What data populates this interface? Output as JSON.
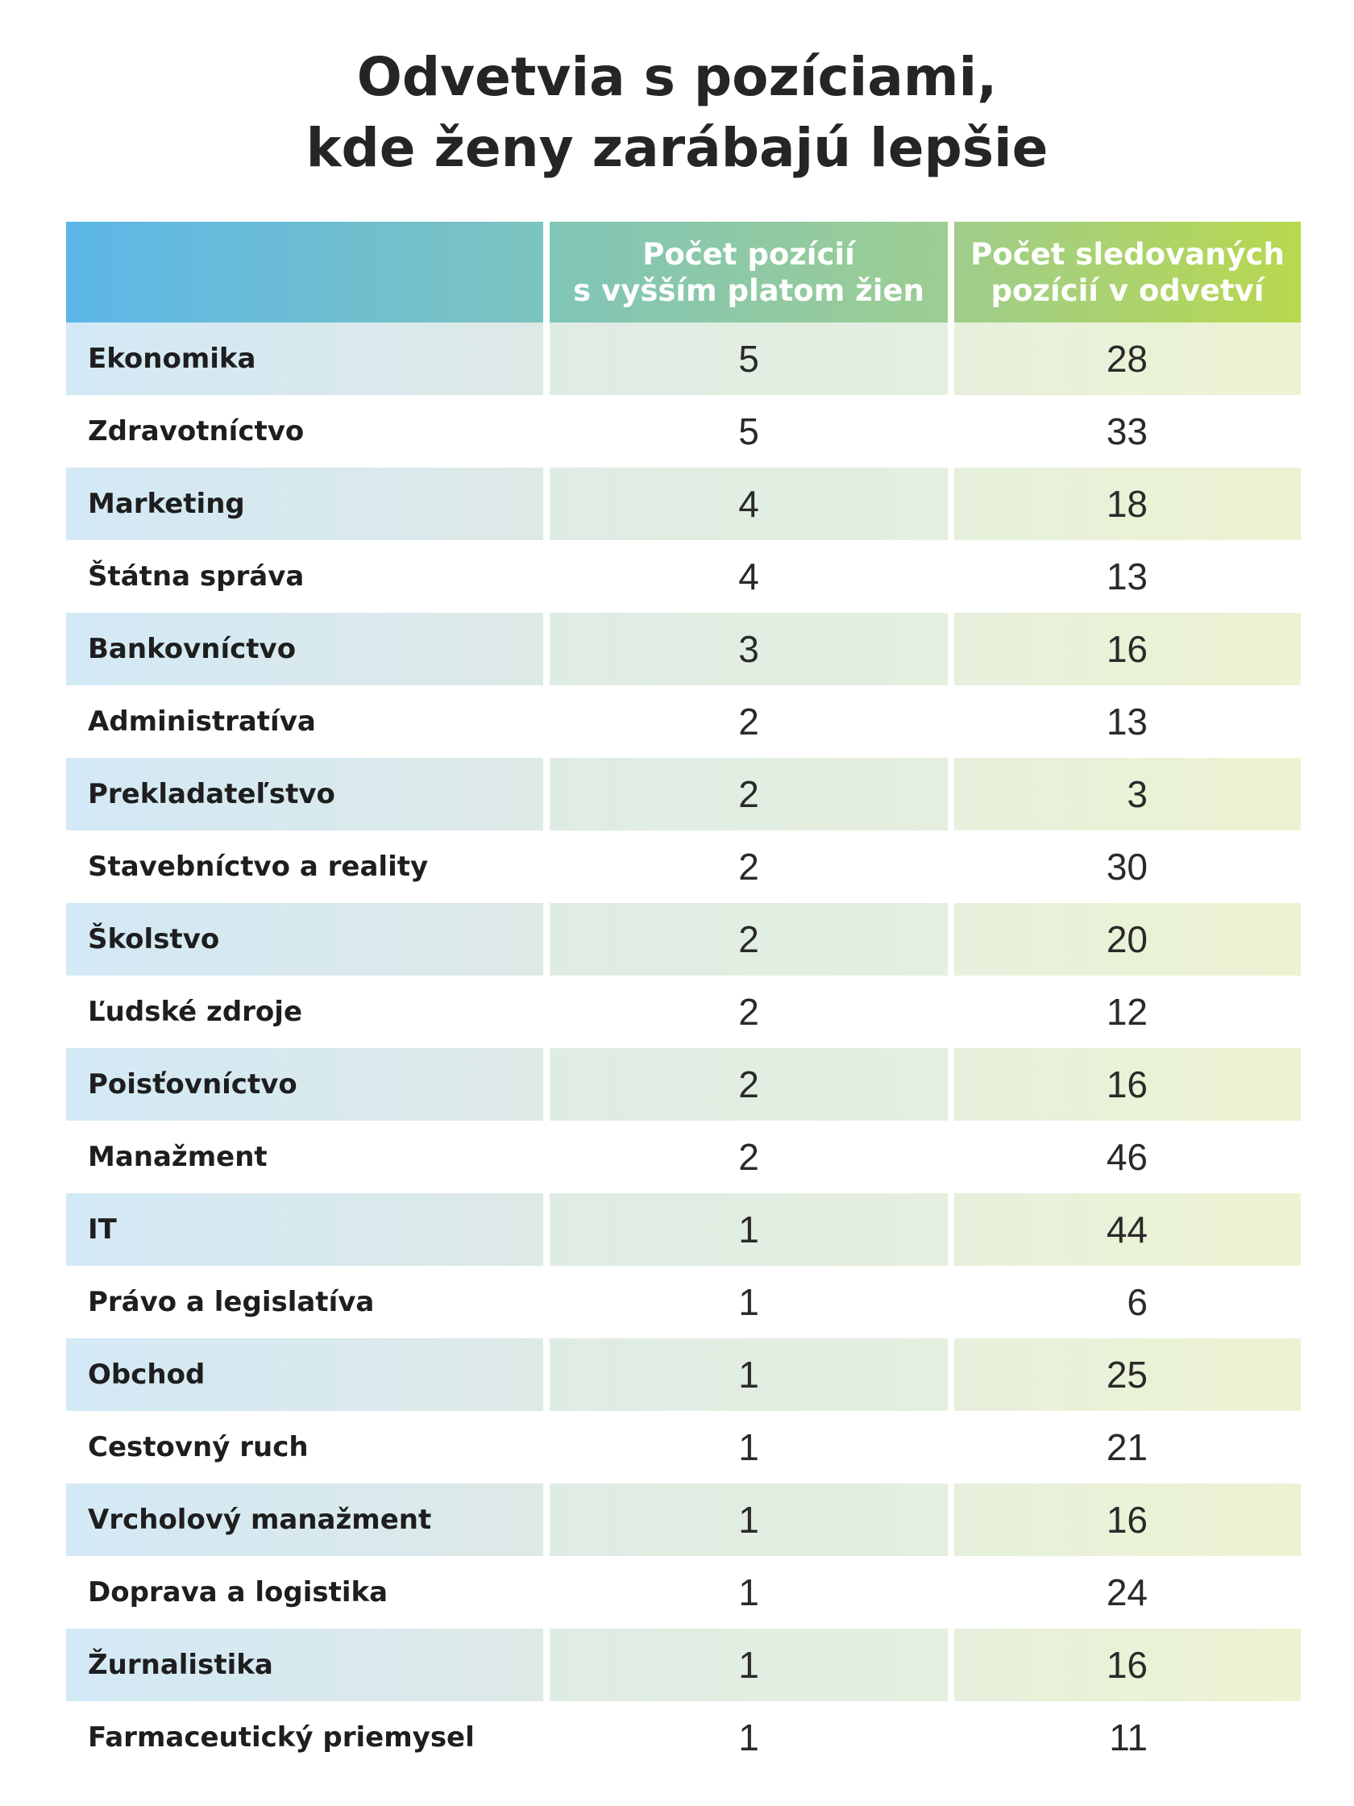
{
  "title": {
    "line1": "Odvetvia s pozíciami,",
    "line2": "kde ženy zarábajú lepšie"
  },
  "header": {
    "col0": "",
    "col1_line1": "Počet pozícií",
    "col1_line2": "s vyšším platom žien",
    "col2_line1": "Počet sledovaných",
    "col2_line2": "pozícií v odvetví"
  },
  "colors": {
    "header_start": "#5cb7e8",
    "header_end": "#b8d84e",
    "row_shade_left": "#d3e9f6",
    "row_shade_right": "#edf3d2"
  },
  "chart_data": {
    "type": "table",
    "title": "Odvetvia s pozíciami, kde ženy zarábajú lepšie",
    "columns": [
      "",
      "Počet pozícií s vyšším platom žien",
      "Počet sledovaných pozícií v odvetví"
    ],
    "rows": [
      {
        "label": "Ekonomika",
        "higher": 5,
        "total": 28
      },
      {
        "label": "Zdravotníctvo",
        "higher": 5,
        "total": 33
      },
      {
        "label": "Marketing",
        "higher": 4,
        "total": 18
      },
      {
        "label": "Štátna správa",
        "higher": 4,
        "total": 13
      },
      {
        "label": "Bankovníctvo",
        "higher": 3,
        "total": 16
      },
      {
        "label": "Administratíva",
        "higher": 2,
        "total": 13
      },
      {
        "label": "Prekladateľstvo",
        "higher": 2,
        "total": 3
      },
      {
        "label": "Stavebníctvo a reality",
        "higher": 2,
        "total": 30
      },
      {
        "label": "Školstvo",
        "higher": 2,
        "total": 20
      },
      {
        "label": "Ľudské zdroje",
        "higher": 2,
        "total": 12
      },
      {
        "label": "Poisťovníctvo",
        "higher": 2,
        "total": 16
      },
      {
        "label": "Manažment",
        "higher": 2,
        "total": 46
      },
      {
        "label": "IT",
        "higher": 1,
        "total": 44
      },
      {
        "label": "Právo a legislatíva",
        "higher": 1,
        "total": 6
      },
      {
        "label": "Obchod",
        "higher": 1,
        "total": 25
      },
      {
        "label": "Cestovný ruch",
        "higher": 1,
        "total": 21
      },
      {
        "label": "Vrcholový manažment",
        "higher": 1,
        "total": 16
      },
      {
        "label": "Doprava a logistika",
        "higher": 1,
        "total": 24
      },
      {
        "label": "Žurnalistika",
        "higher": 1,
        "total": 16
      },
      {
        "label": "Farmaceutický priemysel",
        "higher": 1,
        "total": 11
      }
    ]
  }
}
